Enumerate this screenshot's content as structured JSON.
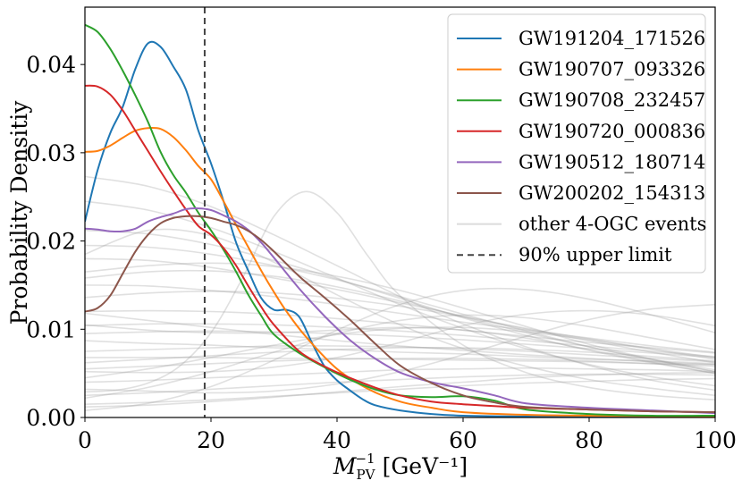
{
  "chart_data": {
    "type": "line",
    "xlabel_main": "M",
    "xlabel_sup": "−1",
    "xlabel_sub": "PV",
    "xlabel_units": "[GeV⁻¹]",
    "ylabel": "Probability Densitiy",
    "xlim": [
      0,
      100
    ],
    "ylim": [
      0,
      0.0465
    ],
    "xticks": [
      0,
      20,
      40,
      60,
      80,
      100
    ],
    "xtick_labels": [
      "0",
      "20",
      "40",
      "60",
      "80",
      "100"
    ],
    "yticks": [
      0,
      0.01,
      0.02,
      0.03,
      0.04
    ],
    "ytick_labels": [
      "0.00",
      "0.01",
      "0.02",
      "0.03",
      "0.04"
    ],
    "grid": false,
    "legend_position": "top-right",
    "upper_limit": {
      "name": "90% upper limit",
      "x": 19,
      "color": "#444444"
    },
    "background_series_label": "other 4-OGC events",
    "background_color": "#999999",
    "series": [
      {
        "name": "GW191204_171526",
        "color": "#1f77b4",
        "x": [
          0,
          2,
          4,
          6,
          8,
          10,
          12,
          14,
          16,
          18,
          20,
          22,
          24,
          26,
          28,
          30,
          32,
          34,
          36,
          38,
          40,
          42,
          44,
          46,
          50,
          55,
          60,
          70,
          80,
          90,
          100
        ],
        "y": [
          0.0222,
          0.028,
          0.0322,
          0.0352,
          0.0395,
          0.0424,
          0.042,
          0.0398,
          0.0372,
          0.0325,
          0.0288,
          0.0245,
          0.0198,
          0.0165,
          0.0135,
          0.0122,
          0.0122,
          0.0114,
          0.0085,
          0.0058,
          0.0042,
          0.0031,
          0.0021,
          0.0014,
          0.0008,
          0.0004,
          0.0002,
          0.0001,
          5e-05,
          3e-05,
          2e-05
        ]
      },
      {
        "name": "GW190707_093326",
        "color": "#ff7f0e",
        "x": [
          0,
          2,
          4,
          6,
          8,
          10,
          12,
          14,
          16,
          18,
          20,
          22,
          24,
          26,
          28,
          30,
          32,
          35,
          40,
          45,
          50,
          55,
          60,
          70,
          80,
          90,
          100
        ],
        "y": [
          0.0301,
          0.0302,
          0.0308,
          0.0317,
          0.0325,
          0.0328,
          0.0327,
          0.0318,
          0.0303,
          0.0285,
          0.027,
          0.0245,
          0.0218,
          0.0192,
          0.0166,
          0.0142,
          0.012,
          0.0092,
          0.0055,
          0.0032,
          0.0018,
          0.0011,
          0.0006,
          0.0003,
          0.0002,
          0.00015,
          0.0001
        ]
      },
      {
        "name": "GW190708_232457",
        "color": "#2ca02c",
        "x": [
          0,
          2,
          4,
          6,
          8,
          10,
          12,
          14,
          16,
          18,
          20,
          22,
          24,
          26,
          28,
          30,
          34,
          38,
          42,
          46,
          50,
          55,
          60,
          65,
          70,
          80,
          90,
          100
        ],
        "y": [
          0.0445,
          0.0437,
          0.0418,
          0.0393,
          0.0365,
          0.0335,
          0.0301,
          0.0275,
          0.0255,
          0.0232,
          0.0212,
          0.019,
          0.0165,
          0.0138,
          0.0115,
          0.0094,
          0.0073,
          0.0057,
          0.0043,
          0.0032,
          0.0025,
          0.0023,
          0.0024,
          0.0019,
          0.0009,
          0.0004,
          0.0002,
          0.0002
        ]
      },
      {
        "name": "GW190720_000836",
        "color": "#d62728",
        "x": [
          0,
          2,
          4,
          6,
          8,
          10,
          12,
          14,
          16,
          18,
          20,
          22,
          24,
          26,
          28,
          30,
          34,
          38,
          42,
          46,
          50,
          55,
          60,
          70,
          80,
          90,
          100
        ],
        "y": [
          0.0376,
          0.0375,
          0.0366,
          0.0348,
          0.0325,
          0.0302,
          0.0279,
          0.0257,
          0.0236,
          0.0217,
          0.0207,
          0.0192,
          0.0172,
          0.0148,
          0.0125,
          0.0105,
          0.0075,
          0.0058,
          0.0045,
          0.0034,
          0.0025,
          0.0018,
          0.0015,
          0.0011,
          0.0009,
          0.0007,
          0.0006
        ]
      },
      {
        "name": "GW190512_180714",
        "color": "#9467bd",
        "x": [
          0,
          2,
          4,
          6,
          8,
          10,
          12,
          14,
          16,
          18,
          20,
          22,
          24,
          26,
          28,
          30,
          34,
          38,
          42,
          46,
          50,
          55,
          60,
          65,
          70,
          80,
          90,
          100
        ],
        "y": [
          0.0214,
          0.0213,
          0.0211,
          0.0211,
          0.0214,
          0.0222,
          0.0227,
          0.0231,
          0.0236,
          0.0237,
          0.0235,
          0.0229,
          0.0222,
          0.0212,
          0.0198,
          0.0181,
          0.0146,
          0.0115,
          0.0088,
          0.0067,
          0.0051,
          0.004,
          0.0033,
          0.0025,
          0.0016,
          0.0011,
          0.0008,
          0.0005
        ]
      },
      {
        "name": "GW200202_154313",
        "color": "#8c564b",
        "x": [
          0,
          2,
          4,
          6,
          8,
          10,
          12,
          14,
          16,
          18,
          20,
          22,
          24,
          26,
          28,
          30,
          34,
          38,
          42,
          46,
          50,
          55,
          60,
          65,
          70,
          80,
          90,
          100
        ],
        "y": [
          0.012,
          0.0124,
          0.0138,
          0.0163,
          0.0188,
          0.0207,
          0.022,
          0.0226,
          0.0228,
          0.0228,
          0.0226,
          0.0222,
          0.0218,
          0.0211,
          0.0201,
          0.0188,
          0.016,
          0.0136,
          0.0111,
          0.0084,
          0.0059,
          0.0039,
          0.0025,
          0.0017,
          0.0012,
          0.0009,
          0.0007,
          0.0006
        ]
      }
    ],
    "background_series": [
      {
        "x": [
          0,
          10,
          20,
          30,
          40,
          50,
          60,
          70,
          80,
          90,
          100
        ],
        "y": [
          0.0273,
          0.0262,
          0.0239,
          0.0207,
          0.0172,
          0.0137,
          0.0106,
          0.008,
          0.0059,
          0.0042,
          0.0031
        ]
      },
      {
        "x": [
          0,
          10,
          20,
          30,
          40,
          50,
          60,
          70,
          80,
          90,
          100
        ],
        "y": [
          0.0212,
          0.0208,
          0.0196,
          0.0178,
          0.0157,
          0.0135,
          0.0113,
          0.0093,
          0.0076,
          0.0062,
          0.005
        ]
      },
      {
        "x": [
          0,
          10,
          20,
          30,
          40,
          50,
          60,
          70,
          80,
          90,
          100
        ],
        "y": [
          0.018,
          0.0178,
          0.017,
          0.0158,
          0.0145,
          0.013,
          0.0115,
          0.0101,
          0.0089,
          0.0078,
          0.0068
        ]
      },
      {
        "x": [
          0,
          10,
          20,
          30,
          40,
          50,
          60,
          70,
          80,
          90,
          100
        ],
        "y": [
          0.015,
          0.0149,
          0.0144,
          0.0137,
          0.0128,
          0.0118,
          0.0108,
          0.0099,
          0.009,
          0.0081,
          0.0074
        ]
      },
      {
        "x": [
          0,
          10,
          20,
          30,
          40,
          50,
          60,
          70,
          80,
          90,
          100
        ],
        "y": [
          0.012,
          0.0121,
          0.012,
          0.0117,
          0.0112,
          0.0106,
          0.0099,
          0.0092,
          0.0085,
          0.0079,
          0.0073
        ]
      },
      {
        "x": [
          0,
          10,
          20,
          30,
          40,
          50,
          60,
          70,
          80,
          90,
          100
        ],
        "y": [
          0.0095,
          0.0097,
          0.0098,
          0.0097,
          0.0095,
          0.0092,
          0.0088,
          0.0083,
          0.0078,
          0.0073,
          0.0068
        ]
      },
      {
        "x": [
          0,
          10,
          20,
          30,
          40,
          50,
          60,
          70,
          80,
          90,
          100
        ],
        "y": [
          0.0075,
          0.0077,
          0.0079,
          0.0081,
          0.0081,
          0.008,
          0.0078,
          0.0075,
          0.0071,
          0.0067,
          0.0063
        ]
      },
      {
        "x": [
          0,
          10,
          20,
          30,
          40,
          50,
          60,
          70,
          80,
          90,
          100
        ],
        "y": [
          0.0055,
          0.0058,
          0.0061,
          0.0064,
          0.0066,
          0.0067,
          0.0067,
          0.0066,
          0.0064,
          0.0061,
          0.0058
        ]
      },
      {
        "x": [
          0,
          10,
          20,
          30,
          40,
          50,
          60,
          70,
          80,
          90,
          100
        ],
        "y": [
          0.004,
          0.0042,
          0.0045,
          0.0048,
          0.0051,
          0.0054,
          0.0055,
          0.0056,
          0.0055,
          0.0054,
          0.0052
        ]
      },
      {
        "x": [
          0,
          10,
          20,
          30,
          40,
          50,
          60,
          70,
          80,
          90,
          100
        ],
        "y": [
          0.0025,
          0.0028,
          0.0032,
          0.0036,
          0.004,
          0.0043,
          0.0046,
          0.0048,
          0.0049,
          0.0049,
          0.0048
        ]
      },
      {
        "x": [
          0,
          10,
          20,
          30,
          40,
          50,
          60,
          70,
          80,
          90,
          100
        ],
        "y": [
          0.0015,
          0.0017,
          0.002,
          0.0024,
          0.0028,
          0.0032,
          0.0036,
          0.0039,
          0.0041,
          0.0043,
          0.0044
        ]
      },
      {
        "x": [
          0,
          10,
          20,
          30,
          40,
          50,
          60,
          70,
          80,
          90,
          100
        ],
        "y": [
          0.0045,
          0.0055,
          0.0068,
          0.0082,
          0.0094,
          0.0101,
          0.0102,
          0.0097,
          0.0088,
          0.0077,
          0.0066
        ]
      },
      {
        "x": [
          0,
          10,
          20,
          30,
          40,
          50,
          60,
          70,
          80,
          90,
          100
        ],
        "y": [
          0.0022,
          0.0034,
          0.0052,
          0.0074,
          0.0095,
          0.011,
          0.0116,
          0.0113,
          0.0103,
          0.009,
          0.0077
        ]
      },
      {
        "x": [
          0,
          10,
          20,
          30,
          40,
          50,
          60,
          70,
          80,
          90,
          100
        ],
        "y": [
          0.0008,
          0.0016,
          0.0035,
          0.0065,
          0.0099,
          0.0128,
          0.0144,
          0.0145,
          0.0134,
          0.0116,
          0.0096
        ]
      },
      {
        "x": [
          0,
          10,
          20,
          30,
          40,
          50,
          60,
          70,
          80,
          90,
          100
        ],
        "y": [
          0.0105,
          0.0099,
          0.0096,
          0.0096,
          0.0099,
          0.0102,
          0.0099,
          0.009,
          0.0077,
          0.0063,
          0.005
        ]
      },
      {
        "x": [
          0,
          10,
          20,
          30,
          40,
          50,
          60,
          70,
          80,
          90,
          100
        ],
        "y": [
          0.0165,
          0.0172,
          0.0175,
          0.0171,
          0.016,
          0.0144,
          0.0124,
          0.0103,
          0.0083,
          0.0066,
          0.0052
        ]
      },
      {
        "x": [
          0,
          10,
          20,
          30,
          40,
          50,
          60,
          70,
          80,
          90,
          100
        ],
        "y": [
          0.0195,
          0.0193,
          0.0185,
          0.0172,
          0.0156,
          0.0137,
          0.0117,
          0.0098,
          0.008,
          0.0065,
          0.0052
        ]
      },
      {
        "x": [
          0,
          5,
          10,
          15,
          20,
          25,
          30,
          35,
          40,
          45,
          50,
          60,
          70,
          80,
          90,
          100
        ],
        "y": [
          0.0029,
          0.0031,
          0.0039,
          0.0058,
          0.0096,
          0.0158,
          0.0228,
          0.0256,
          0.0232,
          0.0182,
          0.0138,
          0.0082,
          0.0051,
          0.0034,
          0.0025,
          0.002
        ]
      },
      {
        "x": [
          0,
          10,
          20,
          30,
          40,
          50,
          60,
          70,
          80,
          90,
          100
        ],
        "y": [
          0.0185,
          0.0212,
          0.0206,
          0.0176,
          0.0139,
          0.0105,
          0.0078,
          0.0058,
          0.0043,
          0.0033,
          0.0025
        ]
      },
      {
        "x": [
          0,
          10,
          20,
          30,
          40,
          50,
          60,
          70,
          80,
          90,
          100
        ],
        "y": [
          0.0136,
          0.0141,
          0.0143,
          0.0141,
          0.0135,
          0.0126,
          0.0114,
          0.01,
          0.0087,
          0.0074,
          0.0062
        ]
      },
      {
        "x": [
          0,
          10,
          20,
          30,
          40,
          50,
          60,
          70,
          80,
          90,
          100
        ],
        "y": [
          0.0068,
          0.0068,
          0.0068,
          0.0067,
          0.0067,
          0.0066,
          0.0065,
          0.0064,
          0.0063,
          0.0061,
          0.006
        ]
      },
      {
        "x": [
          0,
          10,
          20,
          30,
          40,
          50,
          60,
          70,
          80,
          90,
          100
        ],
        "y": [
          0.0052,
          0.0051,
          0.0052,
          0.0057,
          0.0068,
          0.0085,
          0.0104,
          0.0117,
          0.0121,
          0.0116,
          0.0104
        ]
      },
      {
        "x": [
          0,
          10,
          20,
          30,
          40,
          50,
          60,
          70,
          80,
          90,
          100
        ],
        "y": [
          0.0032,
          0.003,
          0.0028,
          0.003,
          0.0038,
          0.0052,
          0.0071,
          0.0092,
          0.0111,
          0.0123,
          0.0128
        ]
      },
      {
        "x": [
          0,
          10,
          20,
          30,
          40,
          50,
          60,
          70,
          80,
          90,
          100
        ],
        "y": [
          0.0118,
          0.011,
          0.0102,
          0.0094,
          0.0087,
          0.0081,
          0.0076,
          0.0071,
          0.0067,
          0.0063,
          0.006
        ]
      },
      {
        "x": [
          0,
          10,
          20,
          30,
          40,
          50,
          60,
          70,
          80,
          90,
          100
        ],
        "y": [
          0.0087,
          0.0084,
          0.0082,
          0.0079,
          0.0077,
          0.0074,
          0.0072,
          0.0069,
          0.0066,
          0.0064,
          0.0061
        ]
      },
      {
        "x": [
          0,
          10,
          20,
          30,
          40,
          50,
          60,
          70,
          80,
          90,
          100
        ],
        "y": [
          0.0245,
          0.0235,
          0.0215,
          0.0188,
          0.0158,
          0.0128,
          0.0101,
          0.0078,
          0.006,
          0.0046,
          0.0036
        ]
      },
      {
        "x": [
          0,
          10,
          20,
          30,
          40,
          50,
          60,
          70,
          80,
          90,
          100
        ],
        "y": [
          0.0062,
          0.0066,
          0.007,
          0.0074,
          0.0077,
          0.0079,
          0.0079,
          0.0077,
          0.0074,
          0.0069,
          0.0064
        ]
      },
      {
        "x": [
          0,
          10,
          20,
          30,
          40,
          50,
          60,
          70,
          80,
          90,
          100
        ],
        "y": [
          0.0012,
          0.0014,
          0.0018,
          0.0023,
          0.0029,
          0.0035,
          0.004,
          0.0045,
          0.0048,
          0.005,
          0.0051
        ]
      },
      {
        "x": [
          0,
          10,
          20,
          30,
          40,
          50,
          60,
          70,
          80,
          90,
          100
        ],
        "y": [
          0.0158,
          0.0165,
          0.0166,
          0.016,
          0.0148,
          0.0132,
          0.0114,
          0.0096,
          0.008,
          0.0066,
          0.0054
        ]
      },
      {
        "x": [
          0,
          10,
          20,
          30,
          40,
          50,
          60,
          70,
          80,
          90,
          100
        ],
        "y": [
          0.0104,
          0.0106,
          0.0106,
          0.0105,
          0.0102,
          0.0098,
          0.0093,
          0.0087,
          0.0081,
          0.0075,
          0.0069
        ]
      }
    ]
  }
}
